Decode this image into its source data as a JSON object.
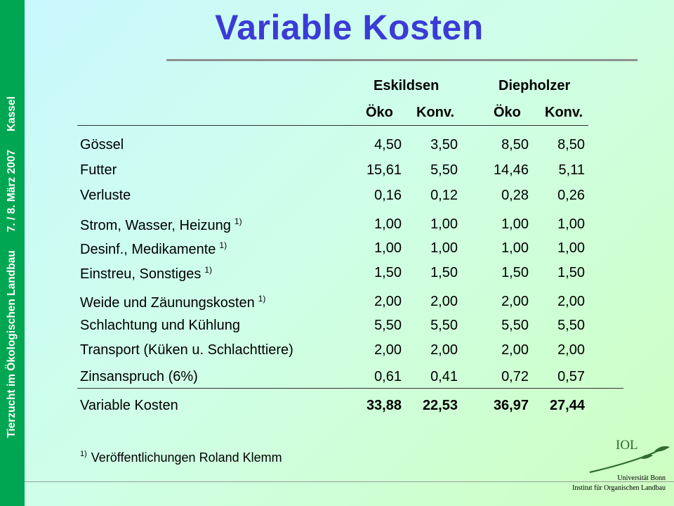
{
  "sidebar": {
    "event": "Tierzucht im Ökologischen Landbau",
    "date": "7. / 8. März 2007",
    "place": "Kassel"
  },
  "title": "Variable Kosten",
  "table": {
    "group_headers": [
      "Eskildsen",
      "Diepholzer"
    ],
    "sub_headers": [
      "Öko",
      "Konv.",
      "Öko",
      "Konv."
    ],
    "rows": [
      {
        "label": "Gössel",
        "note": "",
        "values": [
          "4,50",
          "3,50",
          "8,50",
          "8,50"
        ]
      },
      {
        "label": "Futter",
        "note": "",
        "values": [
          "15,61",
          "5,50",
          "14,46",
          "5,11"
        ]
      },
      {
        "label": "Verluste",
        "note": "",
        "values": [
          "0,16",
          "0,12",
          "0,28",
          "0,26"
        ]
      },
      {
        "label": "Strom, Wasser, Heizung",
        "note": "1)",
        "values": [
          "1,00",
          "1,00",
          "1,00",
          "1,00"
        ]
      },
      {
        "label": "Desinf., Medikamente",
        "note": "1)",
        "values": [
          "1,00",
          "1,00",
          "1,00",
          "1,00"
        ]
      },
      {
        "label": "Einstreu, Sonstiges",
        "note": "1)",
        "values": [
          "1,50",
          "1,50",
          "1,50",
          "1,50"
        ]
      },
      {
        "label": "Weide und Zäunungskosten",
        "note": "1)",
        "values": [
          "2,00",
          "2,00",
          "2,00",
          "2,00"
        ]
      },
      {
        "label": "Schlachtung und Kühlung",
        "note": "",
        "values": [
          "5,50",
          "5,50",
          "5,50",
          "5,50"
        ]
      },
      {
        "label": "Transport (Küken u. Schlachttiere)",
        "note": "",
        "values": [
          "2,00",
          "2,00",
          "2,00",
          "2,00"
        ]
      },
      {
        "label": "Zinsanspruch (6%)",
        "note": "",
        "values": [
          "0,61",
          "0,41",
          "0,72",
          "0,57"
        ]
      }
    ],
    "total": {
      "label": "Variable Kosten",
      "values": [
        "33,88",
        "22,53",
        "36,97",
        "27,44"
      ]
    }
  },
  "footnote": {
    "marker": "1)",
    "text": "Veröffentlichungen Roland Klemm"
  },
  "logo": {
    "text": "IOL",
    "line1": "Universität Bonn",
    "line2": "Institut für Organischen Landbau",
    "color": "#2f6b2f"
  },
  "colors": {
    "sidebar": "#00a651",
    "title": "#3b3bd6"
  }
}
